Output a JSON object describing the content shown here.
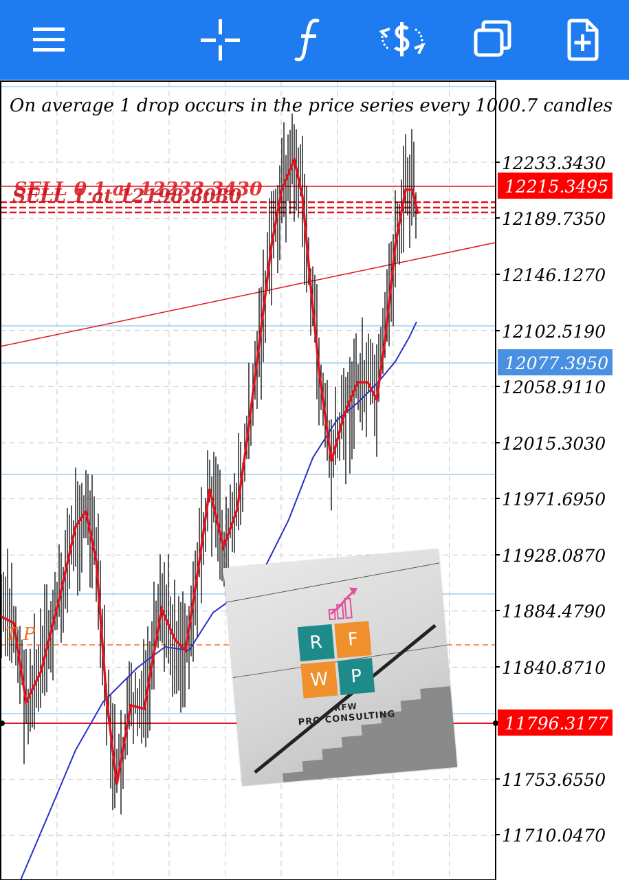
{
  "toolbar": {
    "icons": [
      "menu-icon",
      "crosshair-icon",
      "indicators-icon",
      "trade-icon",
      "windows-icon",
      "new-order-icon"
    ],
    "color": "#1e7cf0"
  },
  "chart": {
    "annotation": "On average 1 drop occurs in the price series every 1000.7 candles",
    "price_axis": {
      "ticks": [
        "12233.3430",
        "12189.7350",
        "12146.1270",
        "12102.5190",
        "12058.9110",
        "12015.3030",
        "11971.6950",
        "11928.0870",
        "11884.4790",
        "11840.8710",
        "11753.6550",
        "11710.0470"
      ]
    },
    "price_tags": [
      {
        "label": "12215.3495",
        "color": "#ff0000"
      },
      {
        "label": "12077.3950",
        "color": "#4a90e2"
      },
      {
        "label": "11796.3177",
        "color": "#ff0000"
      }
    ],
    "order_labels": [
      "SELL 0.1 at 12233.3430",
      "SELL 1 at 12198.8080"
    ],
    "tp_label": "T P",
    "colors": {
      "candles": "#000000",
      "fast_ma": "#e0141e",
      "slow_ma": "#2830c8",
      "level": "#9fcdf0"
    }
  },
  "logo": {
    "tiles": [
      "R",
      "F",
      "W",
      "P"
    ],
    "brand": "RFW",
    "tagline": "PRO CONSULTING",
    "tile_colors": [
      "#1f8a8a",
      "#f0902c",
      "#f0902c",
      "#1f8a8a"
    ]
  }
}
